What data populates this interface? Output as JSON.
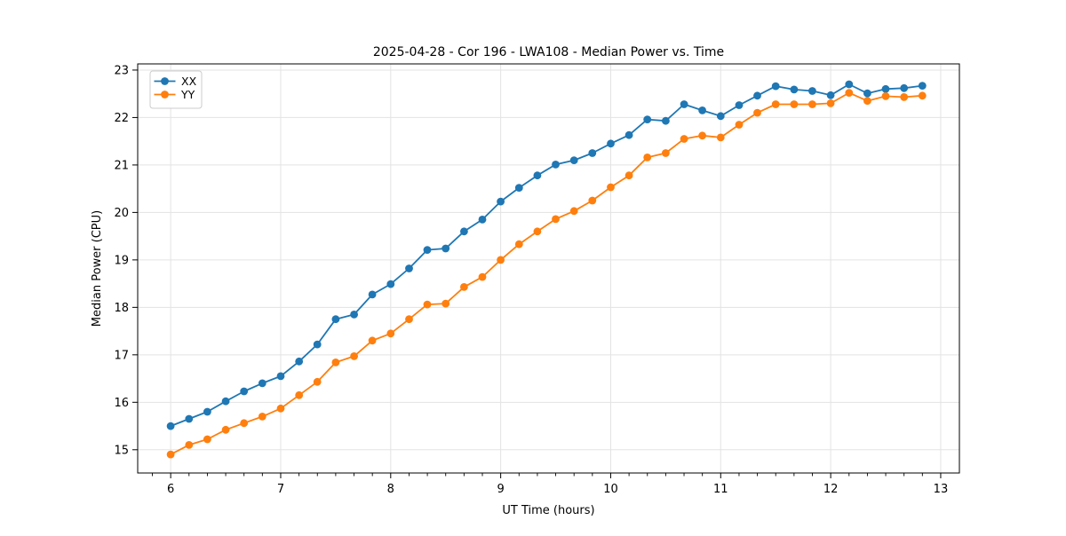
{
  "chart_data": {
    "type": "line",
    "title": "2025-04-28 - Cor 196 - LWA108 - Median Power vs. Time",
    "xlabel": "UT Time (hours)",
    "ylabel": "Median Power (CPU)",
    "xlim": [
      5.7,
      13.17
    ],
    "ylim": [
      14.51,
      23.13
    ],
    "x_ticks": [
      6,
      7,
      8,
      9,
      10,
      11,
      12,
      13
    ],
    "y_ticks": [
      15,
      16,
      17,
      18,
      19,
      20,
      21,
      22,
      23
    ],
    "x_minor_tick_step": 0.16667,
    "grid": true,
    "grid_color": "#e3e3e3",
    "legend_position": "upper-left",
    "x": [
      6.0,
      6.167,
      6.333,
      6.5,
      6.667,
      6.833,
      7.0,
      7.167,
      7.333,
      7.5,
      7.667,
      7.833,
      8.0,
      8.167,
      8.333,
      8.5,
      8.667,
      8.833,
      9.0,
      9.167,
      9.333,
      9.5,
      9.667,
      9.833,
      10.0,
      10.167,
      10.333,
      10.5,
      10.667,
      10.833,
      11.0,
      11.167,
      11.333,
      11.5,
      11.667,
      11.833,
      12.0,
      12.167,
      12.333,
      12.5,
      12.667,
      12.833
    ],
    "series": [
      {
        "name": "XX",
        "color": "#1f77b4",
        "values": [
          15.5,
          15.65,
          15.8,
          16.02,
          16.23,
          16.4,
          16.55,
          16.86,
          17.22,
          17.75,
          17.85,
          18.27,
          18.49,
          18.82,
          19.21,
          19.24,
          19.6,
          19.85,
          20.23,
          20.52,
          20.78,
          21.01,
          21.1,
          21.25,
          21.45,
          21.63,
          21.96,
          21.93,
          22.28,
          22.15,
          22.03,
          22.26,
          22.46,
          22.66,
          22.59,
          22.56,
          22.47,
          22.7,
          22.51,
          22.6,
          22.62,
          22.67
        ]
      },
      {
        "name": "YY",
        "color": "#ff7f0e",
        "values": [
          14.9,
          15.1,
          15.22,
          15.42,
          15.56,
          15.7,
          15.87,
          16.15,
          16.43,
          16.84,
          16.97,
          17.3,
          17.45,
          17.75,
          18.06,
          18.08,
          18.43,
          18.64,
          19.0,
          19.33,
          19.6,
          19.86,
          20.03,
          20.25,
          20.53,
          20.78,
          21.16,
          21.25,
          21.55,
          21.62,
          21.58,
          21.85,
          22.1,
          22.28,
          22.28,
          22.28,
          22.3,
          22.52,
          22.35,
          22.45,
          22.43,
          22.46
        ]
      }
    ]
  }
}
